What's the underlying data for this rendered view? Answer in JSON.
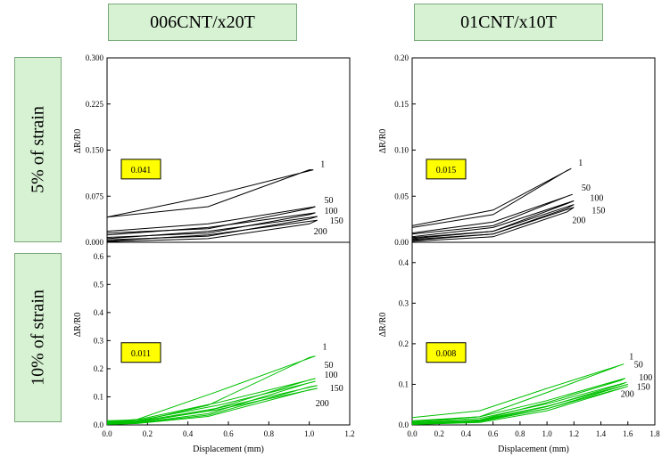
{
  "headers": {
    "left": "006CNT/x20T",
    "right": "01CNT/x10T"
  },
  "row_labels": {
    "top": "5% of strain",
    "bottom": "10% of strain"
  },
  "colors": {
    "header_fill": "#d7f2d3",
    "box_fill": "#ffff00",
    "top_curves": "#000000",
    "bottom_curves": "#00c000"
  },
  "chart_data": [
    {
      "type": "line",
      "panel": "006CNT/x20T, 5% of strain",
      "xlim": [
        0,
        1.2
      ],
      "ylim": [
        0,
        0.3
      ],
      "ylabel": "ΔR/R0",
      "ytick_labels": [
        "0.000",
        "0.075",
        "0.150",
        "0.225",
        "0.300"
      ],
      "box_label": "0.041",
      "series": [
        {
          "name": "1",
          "x": [
            0,
            0.5,
            1.02,
            1.0,
            0.5,
            0
          ],
          "y": [
            0.041,
            0.075,
            0.118,
            0.118,
            0.058,
            0.041
          ]
        },
        {
          "name": "50",
          "x": [
            0,
            0.5,
            1.03,
            1.0,
            0.5,
            0
          ],
          "y": [
            0.018,
            0.03,
            0.058,
            0.055,
            0.022,
            0.015
          ]
        },
        {
          "name": "100",
          "x": [
            0,
            0.5,
            1.03,
            1.0,
            0.5,
            0
          ],
          "y": [
            0.012,
            0.024,
            0.048,
            0.045,
            0.015,
            0.008
          ]
        },
        {
          "name": "150",
          "x": [
            0,
            0.5,
            1.04,
            1.0,
            0.5,
            0
          ],
          "y": [
            0.006,
            0.018,
            0.042,
            0.038,
            0.01,
            0.004
          ]
        },
        {
          "name": "200",
          "x": [
            0,
            0.5,
            1.04,
            1.0,
            0.5,
            0
          ],
          "y": [
            0.002,
            0.012,
            0.036,
            0.03,
            0.006,
            0.001
          ]
        }
      ]
    },
    {
      "type": "line",
      "panel": "01CNT/x10T, 5% of strain",
      "xlim": [
        0,
        1.8
      ],
      "ylim": [
        0,
        0.2
      ],
      "ylabel": "ΔR/R0",
      "ytick_labels": [
        "0.00",
        "0.05",
        "0.10",
        "0.15",
        "0.20"
      ],
      "box_label": "0.015",
      "series": [
        {
          "name": "1",
          "x": [
            0,
            0.6,
            1.18,
            1.15,
            0.6,
            0
          ],
          "y": [
            0.018,
            0.035,
            0.08,
            0.078,
            0.03,
            0.016
          ]
        },
        {
          "name": "50",
          "x": [
            0,
            0.6,
            1.19,
            1.15,
            0.6,
            0
          ],
          "y": [
            0.01,
            0.022,
            0.052,
            0.05,
            0.018,
            0.009
          ]
        },
        {
          "name": "100",
          "x": [
            0,
            0.6,
            1.2,
            1.15,
            0.6,
            0
          ],
          "y": [
            0.006,
            0.016,
            0.045,
            0.042,
            0.012,
            0.005
          ]
        },
        {
          "name": "150",
          "x": [
            0,
            0.6,
            1.2,
            1.15,
            0.6,
            0
          ],
          "y": [
            0.004,
            0.012,
            0.041,
            0.037,
            0.009,
            0.003
          ]
        },
        {
          "name": "200",
          "x": [
            0,
            0.6,
            1.2,
            1.15,
            0.6,
            0
          ],
          "y": [
            0.002,
            0.009,
            0.038,
            0.033,
            0.006,
            0.001
          ]
        }
      ]
    },
    {
      "type": "line",
      "panel": "006CNT/x20T, 10% of strain",
      "xlim": [
        0,
        1.2
      ],
      "ylim": [
        0,
        0.65
      ],
      "ylabel": "ΔR/R0",
      "xlabel": "Displacement (mm)",
      "xticks": [
        "0.0",
        "0.2",
        "0.4",
        "0.6",
        "0.8",
        "1.0",
        "1.2"
      ],
      "yticks": [
        "0.0",
        "0.1",
        "0.2",
        "0.3",
        "0.4",
        "0.5",
        "0.6"
      ],
      "box_label": "0.011",
      "series": [
        {
          "name": "1",
          "x": [
            0,
            0.15,
            0.55,
            1.03,
            1.0,
            0.5,
            0.15,
            0
          ],
          "y": [
            0.011,
            0.02,
            0.12,
            0.245,
            0.24,
            0.07,
            0.012,
            0.011
          ]
        },
        {
          "name": "50",
          "x": [
            0,
            0.15,
            0.55,
            1.03,
            1.0,
            0.5,
            0.15,
            0
          ],
          "y": [
            0.015,
            0.018,
            0.08,
            0.165,
            0.16,
            0.05,
            0.01,
            0.005
          ]
        },
        {
          "name": "100",
          "x": [
            0,
            0.15,
            0.55,
            1.03,
            1.0,
            0.5,
            0.15,
            0
          ],
          "y": [
            0.012,
            0.015,
            0.07,
            0.155,
            0.15,
            0.04,
            0.008,
            0.004
          ]
        },
        {
          "name": "150",
          "x": [
            0,
            0.15,
            0.55,
            1.04,
            1.0,
            0.5,
            0.15,
            0
          ],
          "y": [
            0.01,
            0.012,
            0.06,
            0.14,
            0.135,
            0.035,
            0.006,
            0.003
          ]
        },
        {
          "name": "200",
          "x": [
            0,
            0.15,
            0.55,
            1.04,
            1.0,
            0.5,
            0.15,
            0
          ],
          "y": [
            0.008,
            0.01,
            0.055,
            0.13,
            0.125,
            0.03,
            0.005,
            0.002
          ]
        }
      ]
    },
    {
      "type": "line",
      "panel": "01CNT/x10T, 10% of strain",
      "xlim": [
        0,
        1.8
      ],
      "ylim": [
        0,
        0.45
      ],
      "ylabel": "ΔR/R0",
      "xlabel": "Displacement (mm)",
      "xticks": [
        "0.0",
        "0.2",
        "0.4",
        "0.6",
        "0.8",
        "1.0",
        "1.2",
        "1.4",
        "1.6",
        "1.8"
      ],
      "yticks": [
        "0.0",
        "0.1",
        "0.2",
        "0.3",
        "0.4"
      ],
      "box_label": "0.008",
      "series": [
        {
          "name": "1",
          "x": [
            0,
            0.5,
            1.0,
            1.57,
            1.55,
            1.0,
            0.5,
            0
          ],
          "y": [
            0.018,
            0.035,
            0.09,
            0.15,
            0.148,
            0.08,
            0.02,
            0.008
          ]
        },
        {
          "name": "50",
          "x": [
            0,
            0.5,
            1.0,
            1.58,
            1.55,
            1.0,
            0.5,
            0
          ],
          "y": [
            0.01,
            0.02,
            0.06,
            0.115,
            0.11,
            0.055,
            0.012,
            0.004
          ]
        },
        {
          "name": "100",
          "x": [
            0,
            0.5,
            1.0,
            1.59,
            1.55,
            1.0,
            0.5,
            0
          ],
          "y": [
            0.008,
            0.016,
            0.052,
            0.105,
            0.1,
            0.045,
            0.01,
            0.003
          ]
        },
        {
          "name": "150",
          "x": [
            0,
            0.5,
            1.0,
            1.6,
            1.55,
            1.0,
            0.5,
            0
          ],
          "y": [
            0.006,
            0.012,
            0.046,
            0.1,
            0.095,
            0.04,
            0.008,
            0.002
          ]
        },
        {
          "name": "200",
          "x": [
            0,
            0.5,
            1.0,
            1.6,
            1.55,
            1.0,
            0.5,
            0
          ],
          "y": [
            0.005,
            0.01,
            0.04,
            0.095,
            0.09,
            0.035,
            0.006,
            0.001
          ]
        }
      ]
    }
  ]
}
